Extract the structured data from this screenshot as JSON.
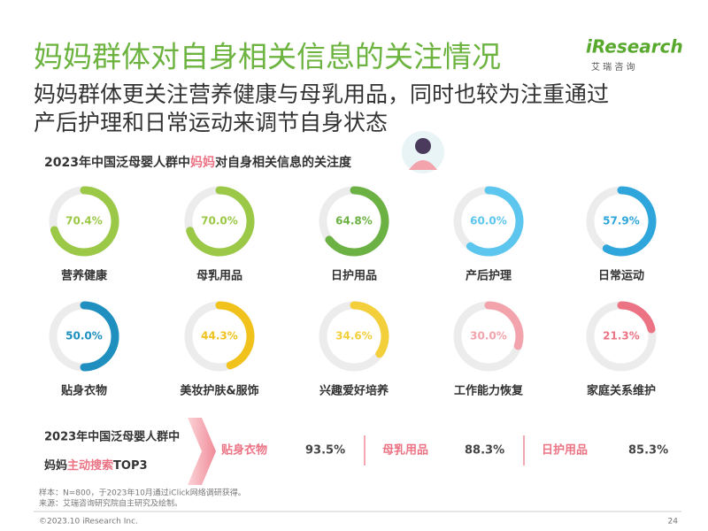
{
  "header": {
    "title": "妈妈群体对自身相关信息的关注情况",
    "subtitle": [
      "妈妈群体更关注营养健康与母乳用品，同时也较为注重通过",
      "产后护理和日常运动来调节自身状态"
    ],
    "logo": "iResearch",
    "logo_sub": "艾 瑞 咨 询"
  },
  "chart_data": {
    "type": "gauge",
    "title": [
      "2023年中国泛母婴人群中",
      "妈妈",
      "对自身相关信息的关注度"
    ],
    "categories": [
      "营养健康",
      "母乳用品",
      "日护用品",
      "产后护理",
      "日常运动",
      "贴身衣物",
      "美妆护肤&服饰",
      "兴趣爱好培养",
      "工作能力恢复",
      "家庭关系维护"
    ],
    "values": [
      70.4,
      70.0,
      64.8,
      60.0,
      57.9,
      50.0,
      44.3,
      34.6,
      30.0,
      21.3
    ],
    "value_labels": [
      "70.4%",
      "70.0%",
      "64.8%",
      "60.0%",
      "57.9%",
      "50.0%",
      "44.3%",
      "34.6%",
      "30.0%",
      "21.3%"
    ],
    "colors": [
      "#9bc847",
      "#9bc847",
      "#6bb143",
      "#5cc6ee",
      "#2ea6db",
      "#1f8fbf",
      "#f1c21b",
      "#f3cf3c",
      "#f2a3ac",
      "#ec7384"
    ],
    "range": [
      0,
      100
    ]
  },
  "ranking": {
    "title": [
      "2023年中国泛母婴人群中",
      "妈妈",
      "主动搜索",
      "TOP3"
    ],
    "items": [
      {
        "name": "贴身衣物",
        "value": "93.5%"
      },
      {
        "name": "母乳用品",
        "value": "88.3%"
      },
      {
        "name": "日护用品",
        "value": "85.3%"
      }
    ]
  },
  "footer": {
    "notes": [
      "样本：N=800，于2023年10月通过iClick网络调研获得。",
      "来源：艾瑞咨询研究院自主研究及绘制。"
    ],
    "copyright": "©2023.10 iResearch Inc.",
    "page": "24"
  }
}
